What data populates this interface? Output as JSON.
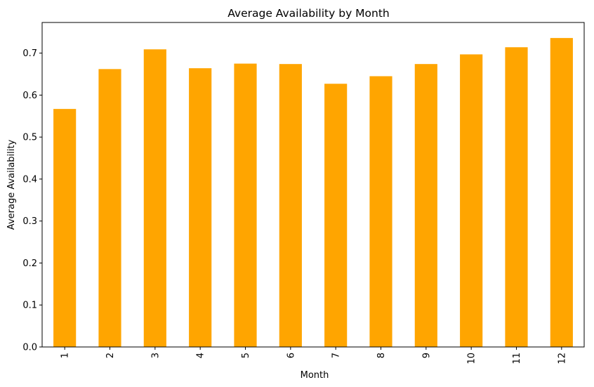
{
  "chart_data": {
    "type": "bar",
    "title": "Average Availability by Month",
    "xlabel": "Month",
    "ylabel": "Average Availability",
    "categories": [
      "1",
      "2",
      "3",
      "4",
      "5",
      "6",
      "7",
      "8",
      "9",
      "10",
      "11",
      "12"
    ],
    "values": [
      0.567,
      0.662,
      0.709,
      0.664,
      0.675,
      0.674,
      0.627,
      0.645,
      0.674,
      0.697,
      0.714,
      0.736
    ],
    "ylim": [
      0,
      0.773
    ],
    "yticks": [
      "0.0",
      "0.1",
      "0.2",
      "0.3",
      "0.4",
      "0.5",
      "0.6",
      "0.7"
    ],
    "bar_color": "#ffa500",
    "grid": false,
    "legend": "none"
  }
}
